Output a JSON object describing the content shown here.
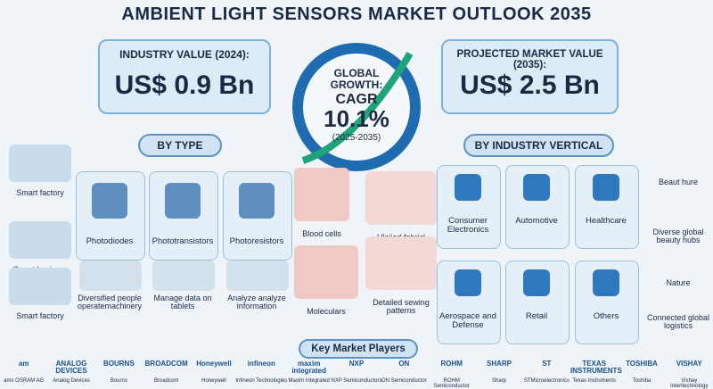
{
  "title": "AMBIENT LIGHT SENSORS MARKET OUTLOOK 2035",
  "industry_value": {
    "label": "INDUSTRY VALUE (2024):",
    "value": "US$ 0.9 Bn"
  },
  "growth": {
    "line1": "GLOBAL",
    "line2": "GROWTH:",
    "line3": "CAGR",
    "value": "10.1%",
    "period": "(2025-2035)"
  },
  "projected_value": {
    "label": "PROJECTED MARKET VALUE (2035):",
    "value": "US$ 2.5 Bn"
  },
  "by_type": {
    "heading": "BY TYPE",
    "items": [
      "Photodiodes",
      "Phototransistors",
      "Photoresistors"
    ],
    "scenes": [
      "Diversified people operatemachinery",
      "Manage data on tablets",
      "Analyze analyze information"
    ]
  },
  "left_scenes": [
    "Smart factory",
    "Smart businery",
    "Smart factory"
  ],
  "middle_scenes": [
    "Blood cells",
    "Uloiiad fabricl sewing patterns",
    "Moleculars",
    "Detailed sewing patterns"
  ],
  "by_industry": {
    "heading": "BY INDUSTRY VERTICAL",
    "items": [
      "Consumer Electronics",
      "Automotive",
      "Healthcare",
      "Aerospace and Defense",
      "Retail",
      "Others"
    ]
  },
  "right_scenes": [
    "Beaut hure",
    "Diverse global beauty hubs",
    "Nature",
    "Connected global logistics"
  ],
  "players": {
    "heading": "Key Market Players",
    "logos": [
      "am",
      "ANALOG DEVICES",
      "BOURNS",
      "BROADCOM",
      "Honeywell",
      "infineon",
      "maxim integrated",
      "NXP",
      "ON",
      "ROHM",
      "SHARP",
      "ST",
      "TEXAS INSTRUMENTS",
      "TOSHIBA",
      "VISHAY"
    ],
    "names": [
      "ams OSRAM AG",
      "Analog Devices",
      "Bourns",
      "Broadcom",
      "Honeywell",
      "Infineon Technologies",
      "Maxim Integrated",
      "NXP Semiconductors",
      "ON Semiconductor",
      "ROHM Semiconductor",
      "Sharp",
      "STMicroelectronics",
      "Texas Instruments",
      "Toshiba",
      "Vishay Interltechnology"
    ]
  }
}
